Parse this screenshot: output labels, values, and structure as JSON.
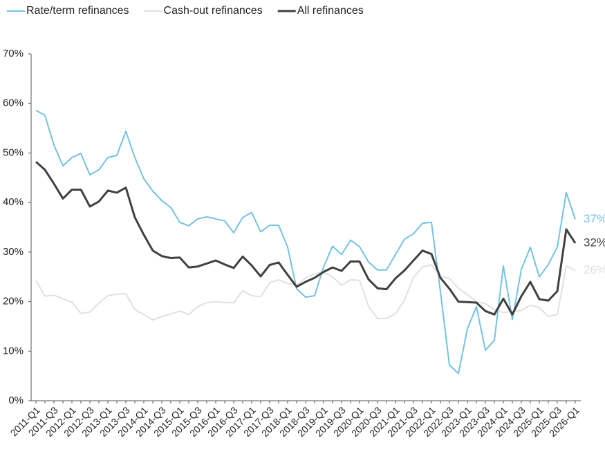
{
  "chart_data": {
    "type": "line",
    "categories": [
      "2011-Q1",
      null,
      "2011-Q3",
      null,
      "2012-Q1",
      null,
      "2012-Q3",
      null,
      "2013-Q1",
      null,
      "2013-Q3",
      null,
      "2014-Q1",
      null,
      "2014-Q3",
      null,
      "2015-Q1",
      null,
      "2015-Q3",
      null,
      "2016-Q1",
      null,
      "2016-Q3",
      null,
      "2017-Q1",
      null,
      "2017-Q3",
      null,
      "2018-Q1",
      null,
      "2018-Q3",
      null,
      "2019-Q1",
      null,
      "2019-Q3",
      null,
      "2020-Q1",
      null,
      "2020-Q3",
      null,
      "2021-Q1",
      null,
      "2021-Q3",
      null,
      "2022-Q1",
      null,
      "2022-Q3",
      null,
      "2023-Q1",
      null,
      "2023-Q3",
      null,
      "2024-Q1",
      null,
      "2024-Q3",
      null,
      "2025-Q1",
      null,
      "2025-Q3",
      null,
      "2026-Q1"
    ],
    "series": [
      {
        "name": "Rate/term refinances",
        "color": "#74c1e3",
        "values": [
          58.6,
          57.6,
          51.6,
          47.4,
          49.1,
          49.9,
          45.6,
          46.6,
          49.1,
          49.5,
          54.4,
          49.1,
          44.8,
          42.3,
          40.4,
          39.0,
          36.0,
          35.3,
          36.7,
          37.1,
          36.7,
          36.3,
          33.9,
          37.0,
          38.0,
          34.1,
          35.4,
          35.4,
          31.0,
          22.6,
          20.9,
          21.2,
          27.0,
          31.2,
          29.5,
          32.4,
          31.1,
          28.0,
          26.4,
          26.4,
          29.5,
          32.6,
          33.7,
          35.8,
          36.0,
          22.0,
          7.2,
          5.5,
          14.5,
          19.0,
          10.2,
          12.2,
          27.2,
          16.4,
          26.5,
          31.0,
          25.0,
          27.5,
          31.0,
          42.0,
          36.6
        ],
        "value_labels": [
          null,
          null,
          null,
          null,
          null,
          null,
          null,
          null,
          null,
          null,
          null,
          null,
          null,
          null,
          null,
          null,
          null,
          null,
          null,
          null,
          null,
          null,
          null,
          null,
          null,
          null,
          null,
          null,
          null,
          null,
          null,
          null,
          null,
          null,
          null,
          null,
          null,
          null,
          null,
          null,
          null,
          null,
          null,
          null,
          null,
          null,
          null,
          null,
          null,
          null,
          null,
          null,
          null,
          null,
          null,
          null,
          null,
          null,
          null,
          null,
          "37%"
        ]
      },
      {
        "name": "Cash-out refinances",
        "color": "#e0e0e0",
        "values": [
          24.3,
          21.1,
          21.3,
          20.6,
          19.9,
          17.6,
          17.9,
          19.7,
          21.2,
          21.5,
          21.6,
          18.4,
          17.4,
          16.3,
          17.0,
          17.5,
          18.1,
          17.4,
          19.0,
          19.8,
          20.0,
          19.8,
          19.8,
          22.2,
          21.2,
          21.0,
          23.8,
          24.4,
          23.7,
          23.3,
          24.8,
          25.6,
          26.0,
          25.0,
          23.3,
          24.4,
          24.3,
          19.0,
          16.6,
          16.6,
          17.6,
          20.3,
          24.9,
          27.0,
          27.4,
          25.0,
          24.7,
          22.7,
          21.4,
          20.0,
          19.6,
          18.4,
          17.8,
          18.0,
          18.2,
          19.3,
          18.8,
          17.0,
          17.4,
          27.2,
          26.3
        ],
        "value_labels": [
          null,
          null,
          null,
          null,
          null,
          null,
          null,
          null,
          null,
          null,
          null,
          null,
          null,
          null,
          null,
          null,
          null,
          null,
          null,
          null,
          null,
          null,
          null,
          null,
          null,
          null,
          null,
          null,
          null,
          null,
          null,
          null,
          null,
          null,
          null,
          null,
          null,
          null,
          null,
          null,
          null,
          null,
          null,
          null,
          null,
          null,
          null,
          null,
          null,
          null,
          null,
          null,
          null,
          null,
          null,
          null,
          null,
          null,
          null,
          null,
          "26%"
        ]
      },
      {
        "name": "All refinances",
        "color": "#404040",
        "values": [
          48.2,
          46.6,
          43.8,
          40.8,
          42.6,
          42.6,
          39.2,
          40.2,
          42.4,
          42.0,
          43.0,
          37.0,
          33.5,
          30.3,
          29.2,
          28.8,
          28.9,
          26.9,
          27.1,
          27.7,
          28.3,
          27.5,
          26.8,
          29.1,
          27.3,
          25.1,
          27.4,
          27.9,
          25.4,
          23.0,
          24.0,
          24.8,
          26.0,
          26.9,
          26.2,
          28.1,
          28.1,
          24.5,
          22.7,
          22.5,
          24.7,
          26.3,
          28.3,
          30.3,
          29.6,
          24.8,
          22.6,
          20.0,
          19.9,
          19.8,
          18.1,
          17.4,
          20.6,
          17.4,
          21.1,
          24.0,
          20.5,
          20.2,
          22.1,
          34.6,
          31.8
        ],
        "value_labels": [
          null,
          null,
          null,
          null,
          null,
          null,
          null,
          null,
          null,
          null,
          null,
          null,
          null,
          null,
          null,
          null,
          null,
          null,
          null,
          null,
          null,
          null,
          null,
          null,
          null,
          null,
          null,
          null,
          null,
          null,
          null,
          null,
          null,
          null,
          null,
          null,
          null,
          null,
          null,
          null,
          null,
          null,
          null,
          null,
          null,
          null,
          null,
          null,
          null,
          null,
          null,
          null,
          null,
          null,
          null,
          null,
          null,
          null,
          null,
          null,
          "32%"
        ]
      }
    ],
    "ylim": [
      0,
      70
    ],
    "yticks": [
      {
        "value": 0,
        "label": "0%"
      },
      {
        "value": 10,
        "label": "10%"
      },
      {
        "value": 20,
        "label": "20%"
      },
      {
        "value": 30,
        "label": "30%"
      },
      {
        "value": 40,
        "label": "40%"
      },
      {
        "value": 50,
        "label": "50%"
      },
      {
        "value": 60,
        "label": "60%"
      },
      {
        "value": 70,
        "label": "70%"
      }
    ],
    "grid": false,
    "legend": "top"
  }
}
